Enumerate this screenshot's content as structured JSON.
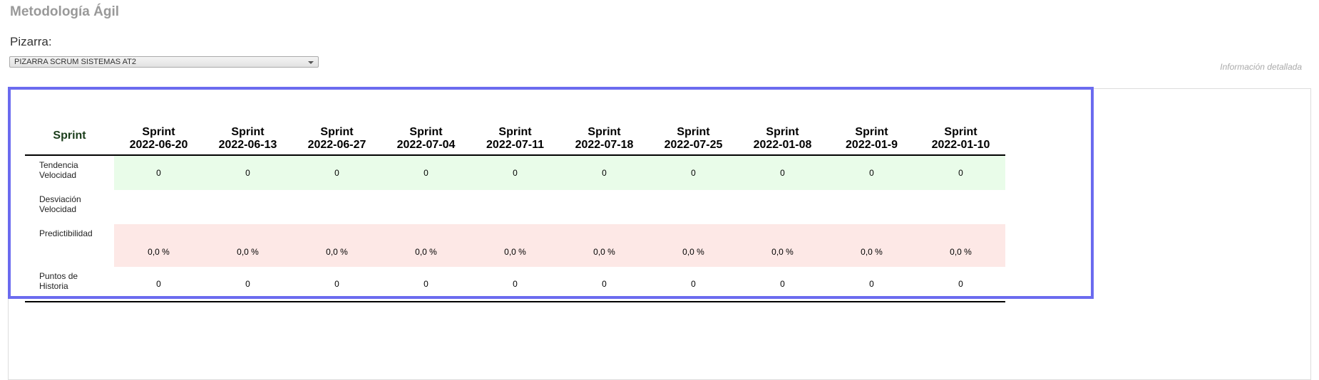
{
  "header": {
    "title": "Metodología Ágil",
    "board_label": "Pizarra:",
    "board_selected": "PIZARRA SCRUM SISTEMAS AT2",
    "detail_link": "Información detallada"
  },
  "table": {
    "label_header": "Sprint",
    "columns": [
      {
        "word": "Sprint",
        "date": "2022-06-20"
      },
      {
        "word": "Sprint",
        "date": "2022-06-13"
      },
      {
        "word": "Sprint",
        "date": "2022-06-27"
      },
      {
        "word": "Sprint",
        "date": "2022-07-04"
      },
      {
        "word": "Sprint",
        "date": "2022-07-11"
      },
      {
        "word": "Sprint",
        "date": "2022-07-18"
      },
      {
        "word": "Sprint",
        "date": "2022-07-25"
      },
      {
        "word": "Sprint",
        "date": "2022-01-08"
      },
      {
        "word": "Sprint",
        "date": "2022-01-9"
      },
      {
        "word": "Sprint",
        "date": "2022-01-10"
      }
    ],
    "rows": [
      {
        "label_line1": "Tendencia",
        "label_line2": "Velocidad",
        "values": [
          "0",
          "0",
          "0",
          "0",
          "0",
          "0",
          "0",
          "0",
          "0",
          "0"
        ]
      },
      {
        "label_line1": "Desviación",
        "label_line2": "Velocidad",
        "values": [
          "",
          "",
          "",
          "",
          "",
          "",
          "",
          "",
          "",
          ""
        ]
      },
      {
        "label_line1": "Predictibilidad",
        "label_line2": "",
        "values": [
          "0,0 %",
          "0,0 %",
          "0,0 %",
          "0,0 %",
          "0,0 %",
          "0,0 %",
          "0,0 %",
          "0,0 %",
          "0,0 %",
          "0,0 %"
        ]
      },
      {
        "label_line1": "Puntos de",
        "label_line2": "Historia",
        "values": [
          "0",
          "0",
          "0",
          "0",
          "0",
          "0",
          "0",
          "0",
          "0",
          "0"
        ]
      }
    ]
  },
  "colors": {
    "highlight_border": "#6b6bef",
    "row_green": "#e9fce9",
    "row_red": "#fde8e6"
  }
}
